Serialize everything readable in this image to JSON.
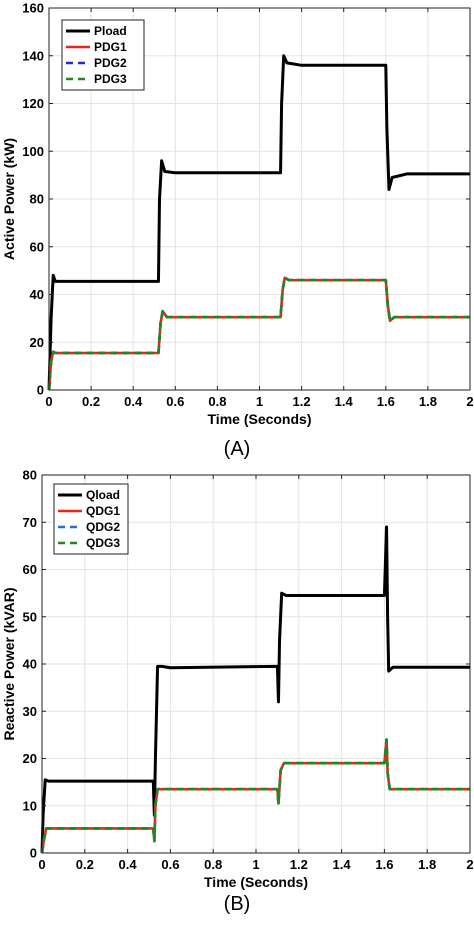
{
  "chart_data": [
    {
      "type": "line",
      "panel_label": "(A)",
      "xlabel": "Time (Seconds)",
      "ylabel": "Active Power (kW)",
      "xlim": [
        0,
        2
      ],
      "ylim": [
        0,
        160
      ],
      "xticks": [
        "0",
        "0.2",
        "0.4",
        "0.6",
        "0.8",
        "1",
        "1.2",
        "1.4",
        "1.6",
        "1.8",
        "2"
      ],
      "yticks": [
        "0",
        "20",
        "40",
        "60",
        "80",
        "100",
        "120",
        "140",
        "160"
      ],
      "grid": true,
      "legend_position": "top-left",
      "series": [
        {
          "name": "Pload",
          "color": "#000000",
          "dash": "solid",
          "points": [
            [
              0,
              0
            ],
            [
              0.01,
              30
            ],
            [
              0.02,
              48
            ],
            [
              0.03,
              45.5
            ],
            [
              0.52,
              45.5
            ],
            [
              0.525,
              80
            ],
            [
              0.535,
              96
            ],
            [
              0.55,
              91.5
            ],
            [
              0.6,
              91
            ],
            [
              1.1,
              91
            ],
            [
              1.105,
              120
            ],
            [
              1.115,
              140
            ],
            [
              1.13,
              137
            ],
            [
              1.2,
              136
            ],
            [
              1.6,
              136
            ],
            [
              1.605,
              110
            ],
            [
              1.615,
              84
            ],
            [
              1.63,
              89
            ],
            [
              1.7,
              90.5
            ],
            [
              2.0,
              90.5
            ]
          ]
        },
        {
          "name": "PDG1",
          "color": "#e8271b",
          "dash": "solid",
          "points": [
            [
              0,
              0
            ],
            [
              0.01,
              12
            ],
            [
              0.02,
              16
            ],
            [
              0.03,
              15.5
            ],
            [
              0.52,
              15.5
            ],
            [
              0.53,
              28
            ],
            [
              0.54,
              33
            ],
            [
              0.56,
              30.5
            ],
            [
              1.1,
              30.5
            ],
            [
              1.11,
              42
            ],
            [
              1.12,
              47
            ],
            [
              1.14,
              46
            ],
            [
              1.6,
              46
            ],
            [
              1.61,
              35
            ],
            [
              1.62,
              29
            ],
            [
              1.64,
              30.5
            ],
            [
              2.0,
              30.5
            ]
          ]
        },
        {
          "name": "PDG2",
          "color": "#1f2bd6",
          "dash": "dashed",
          "points": [
            [
              0,
              0
            ],
            [
              0.01,
              12
            ],
            [
              0.02,
              16
            ],
            [
              0.03,
              15.5
            ],
            [
              0.52,
              15.5
            ],
            [
              0.53,
              28
            ],
            [
              0.54,
              33
            ],
            [
              0.56,
              30.5
            ],
            [
              1.1,
              30.5
            ],
            [
              1.11,
              42
            ],
            [
              1.12,
              47
            ],
            [
              1.14,
              46
            ],
            [
              1.6,
              46
            ],
            [
              1.61,
              35
            ],
            [
              1.62,
              29
            ],
            [
              1.64,
              30.5
            ],
            [
              2.0,
              30.5
            ]
          ]
        },
        {
          "name": "PDG3",
          "color": "#1e8a1e",
          "dash": "dashed",
          "points": [
            [
              0,
              0
            ],
            [
              0.01,
              12
            ],
            [
              0.02,
              16
            ],
            [
              0.03,
              15.5
            ],
            [
              0.52,
              15.5
            ],
            [
              0.53,
              28
            ],
            [
              0.54,
              33
            ],
            [
              0.56,
              30.5
            ],
            [
              1.1,
              30.5
            ],
            [
              1.11,
              42
            ],
            [
              1.12,
              47
            ],
            [
              1.14,
              46
            ],
            [
              1.6,
              46
            ],
            [
              1.61,
              35
            ],
            [
              1.62,
              29
            ],
            [
              1.64,
              30.5
            ],
            [
              2.0,
              30.5
            ]
          ]
        }
      ]
    },
    {
      "type": "line",
      "panel_label": "(B)",
      "xlabel": "Time (Seconds)",
      "ylabel": "Reactive Power (kVAR)",
      "xlim": [
        0,
        2
      ],
      "ylim": [
        0,
        80
      ],
      "xticks": [
        "0",
        "0.2",
        "0.4",
        "0.6",
        "0.8",
        "1",
        "1.2",
        "1.4",
        "1.6",
        "1.8",
        "2"
      ],
      "yticks": [
        "0",
        "10",
        "20",
        "30",
        "40",
        "50",
        "60",
        "70",
        "80"
      ],
      "grid": true,
      "legend_position": "top-left",
      "series": [
        {
          "name": "Qload",
          "color": "#000000",
          "dash": "solid",
          "points": [
            [
              0,
              0
            ],
            [
              0.005,
              8
            ],
            [
              0.015,
              15.5
            ],
            [
              0.03,
              15.2
            ],
            [
              0.52,
              15.2
            ],
            [
              0.525,
              8
            ],
            [
              0.53,
              20
            ],
            [
              0.54,
              39.5
            ],
            [
              0.56,
              39.5
            ],
            [
              0.6,
              39.2
            ],
            [
              1.1,
              39.5
            ],
            [
              1.105,
              32
            ],
            [
              1.11,
              45
            ],
            [
              1.12,
              55
            ],
            [
              1.14,
              54.5
            ],
            [
              1.6,
              54.5
            ],
            [
              1.61,
              69
            ],
            [
              1.615,
              50
            ],
            [
              1.62,
              38.5
            ],
            [
              1.64,
              39.3
            ],
            [
              2.0,
              39.3
            ]
          ]
        },
        {
          "name": "QDG1",
          "color": "#e8271b",
          "dash": "solid",
          "points": [
            [
              0,
              0
            ],
            [
              0.01,
              3
            ],
            [
              0.02,
              5.2
            ],
            [
              0.52,
              5.2
            ],
            [
              0.525,
              2.5
            ],
            [
              0.53,
              10
            ],
            [
              0.54,
              13.5
            ],
            [
              1.1,
              13.5
            ],
            [
              1.105,
              10.5
            ],
            [
              1.115,
              17.5
            ],
            [
              1.13,
              19
            ],
            [
              1.6,
              19
            ],
            [
              1.61,
              24
            ],
            [
              1.615,
              17
            ],
            [
              1.625,
              13.5
            ],
            [
              2.0,
              13.5
            ]
          ]
        },
        {
          "name": "QDG2",
          "color": "#1f6fd6",
          "dash": "dashed",
          "points": [
            [
              0,
              0
            ],
            [
              0.01,
              3
            ],
            [
              0.02,
              5.2
            ],
            [
              0.52,
              5.2
            ],
            [
              0.525,
              2.5
            ],
            [
              0.53,
              10
            ],
            [
              0.54,
              13.5
            ],
            [
              1.1,
              13.5
            ],
            [
              1.105,
              10.5
            ],
            [
              1.115,
              17.5
            ],
            [
              1.13,
              19
            ],
            [
              1.6,
              19
            ],
            [
              1.61,
              24
            ],
            [
              1.615,
              17
            ],
            [
              1.625,
              13.5
            ],
            [
              2.0,
              13.5
            ]
          ]
        },
        {
          "name": "QDG3",
          "color": "#1e8a1e",
          "dash": "dashed",
          "points": [
            [
              0,
              0
            ],
            [
              0.01,
              3
            ],
            [
              0.02,
              5.2
            ],
            [
              0.52,
              5.2
            ],
            [
              0.525,
              2.5
            ],
            [
              0.53,
              10
            ],
            [
              0.54,
              13.5
            ],
            [
              1.1,
              13.5
            ],
            [
              1.105,
              10.5
            ],
            [
              1.115,
              17.5
            ],
            [
              1.13,
              19
            ],
            [
              1.6,
              19
            ],
            [
              1.61,
              24
            ],
            [
              1.615,
              17
            ],
            [
              1.625,
              13.5
            ],
            [
              2.0,
              13.5
            ]
          ]
        }
      ]
    }
  ]
}
